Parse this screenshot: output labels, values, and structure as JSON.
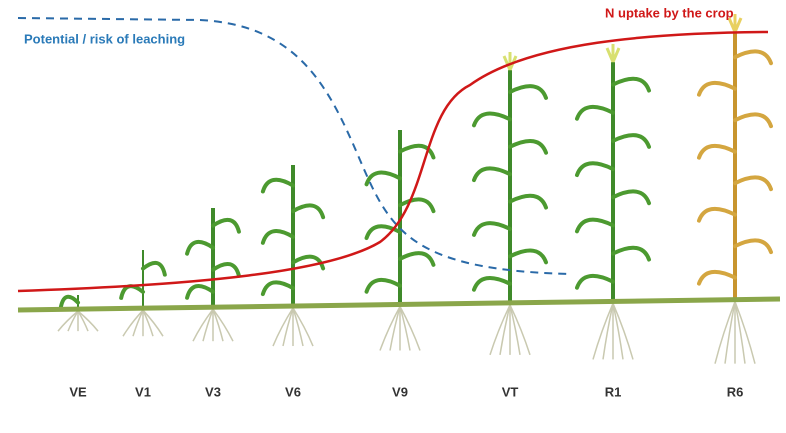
{
  "curves": [
    {
      "label": "Potential / risk of leaching"
    },
    {
      "label": "N uptake by the crop"
    }
  ],
  "stages": [
    "VE",
    "V1",
    "V3",
    "V6",
    "V9",
    "VT",
    "R1",
    "R6"
  ]
}
